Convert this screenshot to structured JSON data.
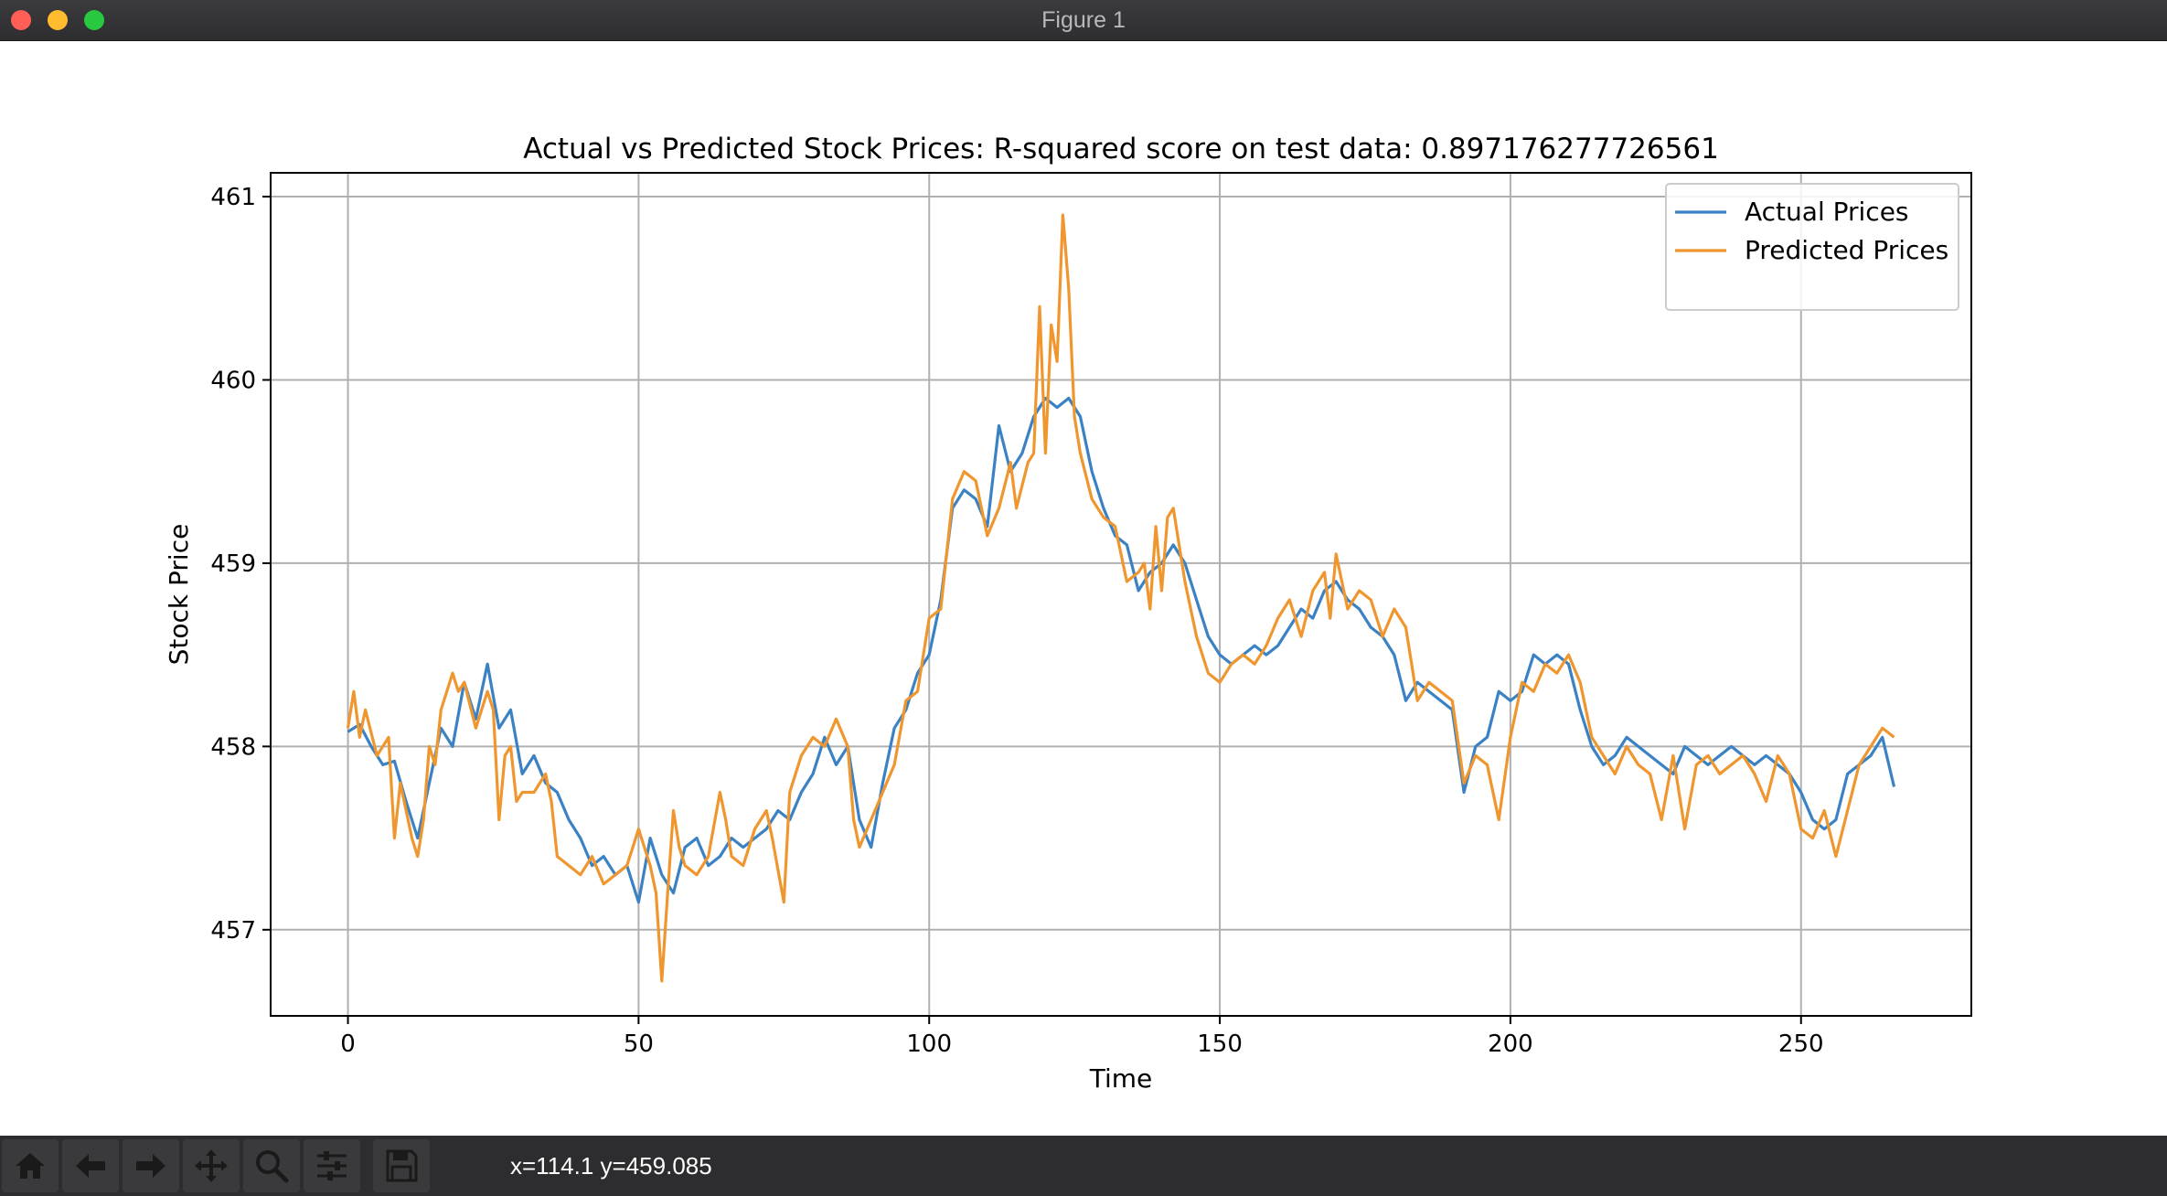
{
  "window": {
    "title": "Figure 1"
  },
  "toolbar": {
    "tools": [
      "home-icon",
      "back-arrow-icon",
      "forward-arrow-icon",
      "pan-icon",
      "zoom-icon",
      "configure-subplots-icon",
      "save-icon"
    ],
    "coords_text": "x=114.1 y=459.085"
  },
  "colors": {
    "actual": "#3b82c4",
    "predicted": "#f0962e"
  },
  "chart_data": {
    "type": "line",
    "title": "Actual vs Predicted Stock Prices: R-squared score on test data: 0.897176277726561",
    "xlabel": "Time",
    "ylabel": "Stock Price",
    "xlim": [
      -13.3,
      279.3
    ],
    "ylim": [
      456.53,
      461.13
    ],
    "xticks": [
      0,
      50,
      100,
      150,
      200,
      250
    ],
    "yticks": [
      457,
      458,
      459,
      460,
      461
    ],
    "grid": true,
    "legend_position": "upper right",
    "series": [
      {
        "name": "Actual Prices",
        "color": "#3b82c4",
        "points": [
          [
            0,
            458.08
          ],
          [
            2,
            458.12
          ],
          [
            4,
            458.0
          ],
          [
            6,
            457.9
          ],
          [
            8,
            457.92
          ],
          [
            10,
            457.7
          ],
          [
            12,
            457.5
          ],
          [
            14,
            457.8
          ],
          [
            16,
            458.1
          ],
          [
            18,
            458.0
          ],
          [
            20,
            458.35
          ],
          [
            22,
            458.15
          ],
          [
            24,
            458.45
          ],
          [
            26,
            458.1
          ],
          [
            28,
            458.2
          ],
          [
            30,
            457.85
          ],
          [
            32,
            457.95
          ],
          [
            34,
            457.8
          ],
          [
            36,
            457.75
          ],
          [
            38,
            457.6
          ],
          [
            40,
            457.5
          ],
          [
            42,
            457.35
          ],
          [
            44,
            457.4
          ],
          [
            46,
            457.3
          ],
          [
            48,
            457.35
          ],
          [
            50,
            457.15
          ],
          [
            52,
            457.5
          ],
          [
            54,
            457.3
          ],
          [
            56,
            457.2
          ],
          [
            58,
            457.45
          ],
          [
            60,
            457.5
          ],
          [
            62,
            457.35
          ],
          [
            64,
            457.4
          ],
          [
            66,
            457.5
          ],
          [
            68,
            457.45
          ],
          [
            70,
            457.5
          ],
          [
            72,
            457.55
          ],
          [
            74,
            457.65
          ],
          [
            76,
            457.6
          ],
          [
            78,
            457.75
          ],
          [
            80,
            457.85
          ],
          [
            82,
            458.05
          ],
          [
            84,
            457.9
          ],
          [
            86,
            458.0
          ],
          [
            88,
            457.6
          ],
          [
            90,
            457.45
          ],
          [
            92,
            457.8
          ],
          [
            94,
            458.1
          ],
          [
            96,
            458.2
          ],
          [
            98,
            458.4
          ],
          [
            100,
            458.5
          ],
          [
            102,
            458.8
          ],
          [
            104,
            459.3
          ],
          [
            106,
            459.4
          ],
          [
            108,
            459.35
          ],
          [
            110,
            459.2
          ],
          [
            112,
            459.75
          ],
          [
            114,
            459.5
          ],
          [
            116,
            459.6
          ],
          [
            118,
            459.8
          ],
          [
            120,
            459.9
          ],
          [
            122,
            459.85
          ],
          [
            124,
            459.9
          ],
          [
            126,
            459.8
          ],
          [
            128,
            459.5
          ],
          [
            130,
            459.3
          ],
          [
            132,
            459.15
          ],
          [
            134,
            459.1
          ],
          [
            136,
            458.85
          ],
          [
            138,
            458.95
          ],
          [
            140,
            459.0
          ],
          [
            142,
            459.1
          ],
          [
            144,
            459.0
          ],
          [
            146,
            458.8
          ],
          [
            148,
            458.6
          ],
          [
            150,
            458.5
          ],
          [
            152,
            458.45
          ],
          [
            154,
            458.5
          ],
          [
            156,
            458.55
          ],
          [
            158,
            458.5
          ],
          [
            160,
            458.55
          ],
          [
            162,
            458.65
          ],
          [
            164,
            458.75
          ],
          [
            166,
            458.7
          ],
          [
            168,
            458.85
          ],
          [
            170,
            458.9
          ],
          [
            172,
            458.8
          ],
          [
            174,
            458.75
          ],
          [
            176,
            458.65
          ],
          [
            178,
            458.6
          ],
          [
            180,
            458.5
          ],
          [
            182,
            458.25
          ],
          [
            184,
            458.35
          ],
          [
            186,
            458.3
          ],
          [
            188,
            458.25
          ],
          [
            190,
            458.2
          ],
          [
            192,
            457.75
          ],
          [
            194,
            458.0
          ],
          [
            196,
            458.05
          ],
          [
            198,
            458.3
          ],
          [
            200,
            458.25
          ],
          [
            202,
            458.3
          ],
          [
            204,
            458.5
          ],
          [
            206,
            458.45
          ],
          [
            208,
            458.5
          ],
          [
            210,
            458.45
          ],
          [
            212,
            458.2
          ],
          [
            214,
            458.0
          ],
          [
            216,
            457.9
          ],
          [
            218,
            457.95
          ],
          [
            220,
            458.05
          ],
          [
            222,
            458.0
          ],
          [
            224,
            457.95
          ],
          [
            226,
            457.9
          ],
          [
            228,
            457.85
          ],
          [
            230,
            458.0
          ],
          [
            232,
            457.95
          ],
          [
            234,
            457.9
          ],
          [
            236,
            457.95
          ],
          [
            238,
            458.0
          ],
          [
            240,
            457.95
          ],
          [
            242,
            457.9
          ],
          [
            244,
            457.95
          ],
          [
            246,
            457.9
          ],
          [
            248,
            457.85
          ],
          [
            250,
            457.75
          ],
          [
            252,
            457.6
          ],
          [
            254,
            457.55
          ],
          [
            256,
            457.6
          ],
          [
            258,
            457.85
          ],
          [
            260,
            457.9
          ],
          [
            262,
            457.95
          ],
          [
            264,
            458.05
          ],
          [
            266,
            457.78
          ]
        ]
      },
      {
        "name": "Predicted Prices",
        "color": "#f0962e",
        "points": [
          [
            0,
            458.1
          ],
          [
            1,
            458.3
          ],
          [
            2,
            458.05
          ],
          [
            3,
            458.2
          ],
          [
            5,
            457.95
          ],
          [
            7,
            458.05
          ],
          [
            8,
            457.5
          ],
          [
            9,
            457.8
          ],
          [
            11,
            457.5
          ],
          [
            12,
            457.4
          ],
          [
            13,
            457.6
          ],
          [
            14,
            458.0
          ],
          [
            15,
            457.9
          ],
          [
            16,
            458.2
          ],
          [
            18,
            458.4
          ],
          [
            19,
            458.3
          ],
          [
            20,
            458.35
          ],
          [
            22,
            458.1
          ],
          [
            24,
            458.3
          ],
          [
            25,
            458.2
          ],
          [
            26,
            457.6
          ],
          [
            27,
            457.95
          ],
          [
            28,
            458.0
          ],
          [
            29,
            457.7
          ],
          [
            30,
            457.75
          ],
          [
            32,
            457.75
          ],
          [
            34,
            457.85
          ],
          [
            35,
            457.7
          ],
          [
            36,
            457.4
          ],
          [
            38,
            457.35
          ],
          [
            40,
            457.3
          ],
          [
            42,
            457.4
          ],
          [
            44,
            457.25
          ],
          [
            46,
            457.3
          ],
          [
            48,
            457.35
          ],
          [
            50,
            457.55
          ],
          [
            52,
            457.35
          ],
          [
            53,
            457.2
          ],
          [
            54,
            456.72
          ],
          [
            55,
            457.2
          ],
          [
            56,
            457.65
          ],
          [
            57,
            457.45
          ],
          [
            58,
            457.35
          ],
          [
            60,
            457.3
          ],
          [
            62,
            457.4
          ],
          [
            64,
            457.75
          ],
          [
            65,
            457.6
          ],
          [
            66,
            457.4
          ],
          [
            68,
            457.35
          ],
          [
            70,
            457.55
          ],
          [
            72,
            457.65
          ],
          [
            73,
            457.5
          ],
          [
            75,
            457.15
          ],
          [
            76,
            457.75
          ],
          [
            78,
            457.95
          ],
          [
            80,
            458.05
          ],
          [
            82,
            458.0
          ],
          [
            84,
            458.15
          ],
          [
            86,
            458.0
          ],
          [
            87,
            457.6
          ],
          [
            88,
            457.45
          ],
          [
            90,
            457.6
          ],
          [
            92,
            457.75
          ],
          [
            94,
            457.9
          ],
          [
            96,
            458.25
          ],
          [
            98,
            458.3
          ],
          [
            100,
            458.7
          ],
          [
            102,
            458.75
          ],
          [
            104,
            459.35
          ],
          [
            106,
            459.5
          ],
          [
            108,
            459.45
          ],
          [
            110,
            459.15
          ],
          [
            112,
            459.3
          ],
          [
            114,
            459.55
          ],
          [
            115,
            459.3
          ],
          [
            117,
            459.55
          ],
          [
            118,
            459.6
          ],
          [
            119,
            460.4
          ],
          [
            120,
            459.6
          ],
          [
            121,
            460.3
          ],
          [
            122,
            460.1
          ],
          [
            123,
            460.9
          ],
          [
            124,
            460.5
          ],
          [
            125,
            459.8
          ],
          [
            126,
            459.6
          ],
          [
            128,
            459.35
          ],
          [
            130,
            459.25
          ],
          [
            132,
            459.2
          ],
          [
            134,
            458.9
          ],
          [
            136,
            458.95
          ],
          [
            137,
            459.0
          ],
          [
            138,
            458.75
          ],
          [
            139,
            459.2
          ],
          [
            140,
            458.85
          ],
          [
            141,
            459.25
          ],
          [
            142,
            459.3
          ],
          [
            144,
            458.9
          ],
          [
            146,
            458.6
          ],
          [
            148,
            458.4
          ],
          [
            150,
            458.35
          ],
          [
            152,
            458.45
          ],
          [
            154,
            458.5
          ],
          [
            156,
            458.45
          ],
          [
            158,
            458.55
          ],
          [
            160,
            458.7
          ],
          [
            162,
            458.8
          ],
          [
            164,
            458.6
          ],
          [
            166,
            458.85
          ],
          [
            168,
            458.95
          ],
          [
            169,
            458.7
          ],
          [
            170,
            459.05
          ],
          [
            172,
            458.75
          ],
          [
            174,
            458.85
          ],
          [
            176,
            458.8
          ],
          [
            178,
            458.6
          ],
          [
            180,
            458.75
          ],
          [
            182,
            458.65
          ],
          [
            184,
            458.25
          ],
          [
            186,
            458.35
          ],
          [
            188,
            458.3
          ],
          [
            190,
            458.25
          ],
          [
            192,
            457.8
          ],
          [
            194,
            457.95
          ],
          [
            196,
            457.9
          ],
          [
            198,
            457.6
          ],
          [
            200,
            458.05
          ],
          [
            202,
            458.35
          ],
          [
            204,
            458.3
          ],
          [
            206,
            458.45
          ],
          [
            208,
            458.4
          ],
          [
            210,
            458.5
          ],
          [
            212,
            458.35
          ],
          [
            214,
            458.05
          ],
          [
            216,
            457.95
          ],
          [
            218,
            457.85
          ],
          [
            220,
            458.0
          ],
          [
            222,
            457.9
          ],
          [
            224,
            457.85
          ],
          [
            226,
            457.6
          ],
          [
            228,
            457.95
          ],
          [
            230,
            457.55
          ],
          [
            232,
            457.9
          ],
          [
            234,
            457.95
          ],
          [
            236,
            457.85
          ],
          [
            238,
            457.9
          ],
          [
            240,
            457.95
          ],
          [
            242,
            457.85
          ],
          [
            244,
            457.7
          ],
          [
            246,
            457.95
          ],
          [
            248,
            457.85
          ],
          [
            250,
            457.55
          ],
          [
            252,
            457.5
          ],
          [
            254,
            457.65
          ],
          [
            256,
            457.4
          ],
          [
            258,
            457.65
          ],
          [
            260,
            457.9
          ],
          [
            262,
            458.0
          ],
          [
            264,
            458.1
          ],
          [
            266,
            458.05
          ]
        ]
      }
    ]
  }
}
